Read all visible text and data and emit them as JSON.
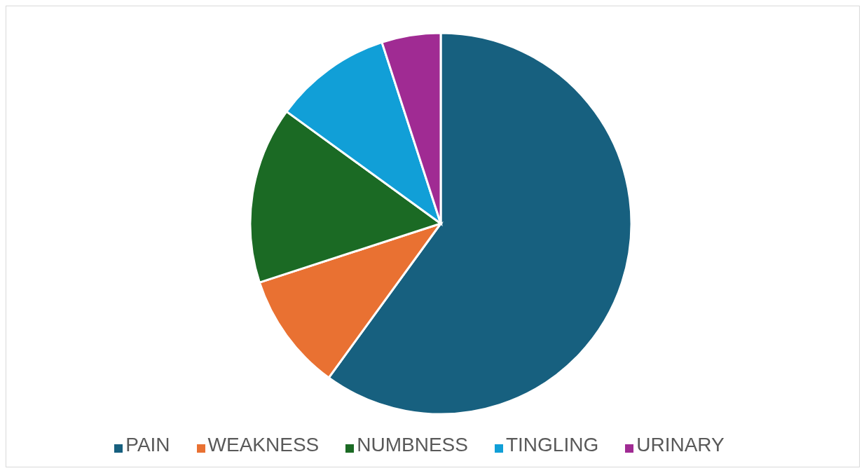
{
  "chart_data": {
    "type": "pie",
    "categories": [
      "PAIN",
      "WEAKNESS",
      "NUMBNESS",
      "TINGLING",
      "URINARY"
    ],
    "values": [
      60,
      10,
      15,
      10,
      5
    ],
    "colors": [
      "#17607f",
      "#e97132",
      "#1b6a24",
      "#119fd7",
      "#a02b93"
    ],
    "legend": "bottom"
  }
}
